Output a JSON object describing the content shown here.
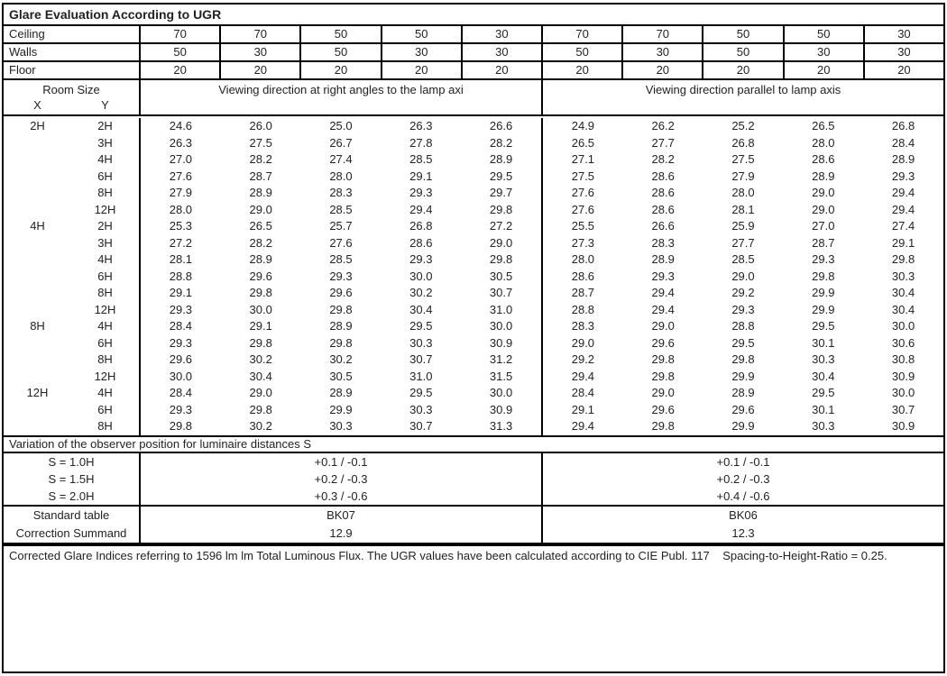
{
  "title": "Glare Evaluation According to UGR",
  "surface_rows": [
    {
      "label": "Ceiling",
      "values": [
        "70",
        "70",
        "50",
        "50",
        "30",
        "70",
        "70",
        "50",
        "50",
        "30"
      ]
    },
    {
      "label": "Walls",
      "values": [
        "50",
        "30",
        "50",
        "30",
        "30",
        "50",
        "30",
        "50",
        "30",
        "30"
      ]
    },
    {
      "label": "Floor",
      "values": [
        "20",
        "20",
        "20",
        "20",
        "20",
        "20",
        "20",
        "20",
        "20",
        "20"
      ]
    }
  ],
  "header": {
    "room_size": "Room Size",
    "x_label": "X",
    "y_label": "Y",
    "left_title": "Viewing direction at right angles to the lamp axi",
    "right_title": "Viewing direction parallel to lamp axis"
  },
  "blocks": [
    {
      "x": "2H",
      "rows": [
        {
          "y": "2H",
          "values": [
            "24.6",
            "26.0",
            "25.0",
            "26.3",
            "26.6",
            "24.9",
            "26.2",
            "25.2",
            "26.5",
            "26.8"
          ]
        },
        {
          "y": "3H",
          "values": [
            "26.3",
            "27.5",
            "26.7",
            "27.8",
            "28.2",
            "26.5",
            "27.7",
            "26.8",
            "28.0",
            "28.4"
          ]
        },
        {
          "y": "4H",
          "values": [
            "27.0",
            "28.2",
            "27.4",
            "28.5",
            "28.9",
            "27.1",
            "28.2",
            "27.5",
            "28.6",
            "28.9"
          ]
        },
        {
          "y": "6H",
          "values": [
            "27.6",
            "28.7",
            "28.0",
            "29.1",
            "29.5",
            "27.5",
            "28.6",
            "27.9",
            "28.9",
            "29.3"
          ]
        },
        {
          "y": "8H",
          "values": [
            "27.9",
            "28.9",
            "28.3",
            "29.3",
            "29.7",
            "27.6",
            "28.6",
            "28.0",
            "29.0",
            "29.4"
          ]
        },
        {
          "y": "12H",
          "values": [
            "28.0",
            "29.0",
            "28.5",
            "29.4",
            "29.8",
            "27.6",
            "28.6",
            "28.1",
            "29.0",
            "29.4"
          ]
        }
      ]
    },
    {
      "x": "4H",
      "rows": [
        {
          "y": "2H",
          "values": [
            "25.3",
            "26.5",
            "25.7",
            "26.8",
            "27.2",
            "25.5",
            "26.6",
            "25.9",
            "27.0",
            "27.4"
          ]
        },
        {
          "y": "3H",
          "values": [
            "27.2",
            "28.2",
            "27.6",
            "28.6",
            "29.0",
            "27.3",
            "28.3",
            "27.7",
            "28.7",
            "29.1"
          ]
        },
        {
          "y": "4H",
          "values": [
            "28.1",
            "28.9",
            "28.5",
            "29.3",
            "29.8",
            "28.0",
            "28.9",
            "28.5",
            "29.3",
            "29.8"
          ]
        },
        {
          "y": "6H",
          "values": [
            "28.8",
            "29.6",
            "29.3",
            "30.0",
            "30.5",
            "28.6",
            "29.3",
            "29.0",
            "29.8",
            "30.3"
          ]
        },
        {
          "y": "8H",
          "values": [
            "29.1",
            "29.8",
            "29.6",
            "30.2",
            "30.7",
            "28.7",
            "29.4",
            "29.2",
            "29.9",
            "30.4"
          ]
        },
        {
          "y": "12H",
          "values": [
            "29.3",
            "30.0",
            "29.8",
            "30.4",
            "31.0",
            "28.8",
            "29.4",
            "29.3",
            "29.9",
            "30.4"
          ]
        }
      ]
    },
    {
      "x": "8H",
      "rows": [
        {
          "y": "4H",
          "values": [
            "28.4",
            "29.1",
            "28.9",
            "29.5",
            "30.0",
            "28.3",
            "29.0",
            "28.8",
            "29.5",
            "30.0"
          ]
        },
        {
          "y": "6H",
          "values": [
            "29.3",
            "29.8",
            "29.8",
            "30.3",
            "30.9",
            "29.0",
            "29.6",
            "29.5",
            "30.1",
            "30.6"
          ]
        },
        {
          "y": "8H",
          "values": [
            "29.6",
            "30.2",
            "30.2",
            "30.7",
            "31.2",
            "29.2",
            "29.8",
            "29.8",
            "30.3",
            "30.8"
          ]
        },
        {
          "y": "12H",
          "values": [
            "30.0",
            "30.4",
            "30.5",
            "31.0",
            "31.5",
            "29.4",
            "29.8",
            "29.9",
            "30.4",
            "30.9"
          ]
        }
      ]
    },
    {
      "x": "12H",
      "rows": [
        {
          "y": "4H",
          "values": [
            "28.4",
            "29.0",
            "28.9",
            "29.5",
            "30.0",
            "28.4",
            "29.0",
            "28.9",
            "29.5",
            "30.0"
          ]
        },
        {
          "y": "6H",
          "values": [
            "29.3",
            "29.8",
            "29.9",
            "30.3",
            "30.9",
            "29.1",
            "29.6",
            "29.6",
            "30.1",
            "30.7"
          ]
        },
        {
          "y": "8H",
          "values": [
            "29.8",
            "30.2",
            "30.3",
            "30.7",
            "31.3",
            "29.4",
            "29.8",
            "29.9",
            "30.3",
            "30.9"
          ]
        }
      ]
    }
  ],
  "variation_title": "Variation of the observer position for luminaire distances S",
  "variation_rows": [
    {
      "label": "S = 1.0H",
      "left": "+0.1 / -0.1",
      "right": "+0.1 / -0.1"
    },
    {
      "label": "S = 1.5H",
      "left": "+0.2 / -0.3",
      "right": "+0.2 / -0.3"
    },
    {
      "label": "S = 2.0H",
      "left": "+0.3 / -0.6",
      "right": "+0.4 / -0.6"
    }
  ],
  "summary_rows": [
    {
      "label": "Standard table",
      "left": "BK07",
      "right": "BK06"
    },
    {
      "label": "Correction Summand",
      "left": "12.9",
      "right": "12.3"
    }
  ],
  "footer": "Corrected Glare Indices referring to 1596 lm lm Total Luminous Flux. The UGR values have been calculated according to CIE Publ. 117    Spacing-to-Height-Ratio = 0.25."
}
